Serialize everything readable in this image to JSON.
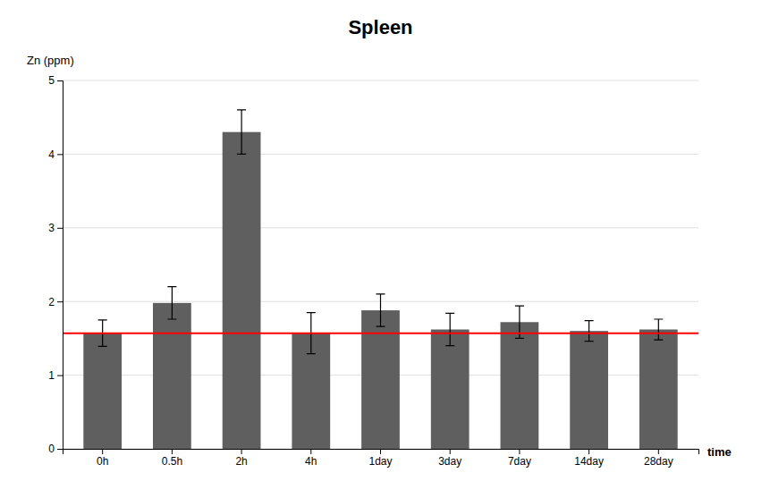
{
  "chart_data": {
    "type": "bar",
    "title": "Spleen",
    "xlabel": "time",
    "ylabel": "Zn (ppm)",
    "categories": [
      "0h",
      "0.5h",
      "2h",
      "4h",
      "1day",
      "3day",
      "7day",
      "14day",
      "28day"
    ],
    "values": [
      1.57,
      1.98,
      4.3,
      1.57,
      1.88,
      1.62,
      1.72,
      1.6,
      1.62
    ],
    "errors": [
      0.18,
      0.22,
      0.3,
      0.28,
      0.22,
      0.22,
      0.22,
      0.14,
      0.14
    ],
    "color": "#5f5f5f",
    "reference_line": {
      "value": 1.57,
      "color": "#ff0000"
    },
    "ylim": [
      0,
      5
    ],
    "yticks": [
      0,
      1,
      2,
      3,
      4,
      5
    ],
    "grid": true
  }
}
